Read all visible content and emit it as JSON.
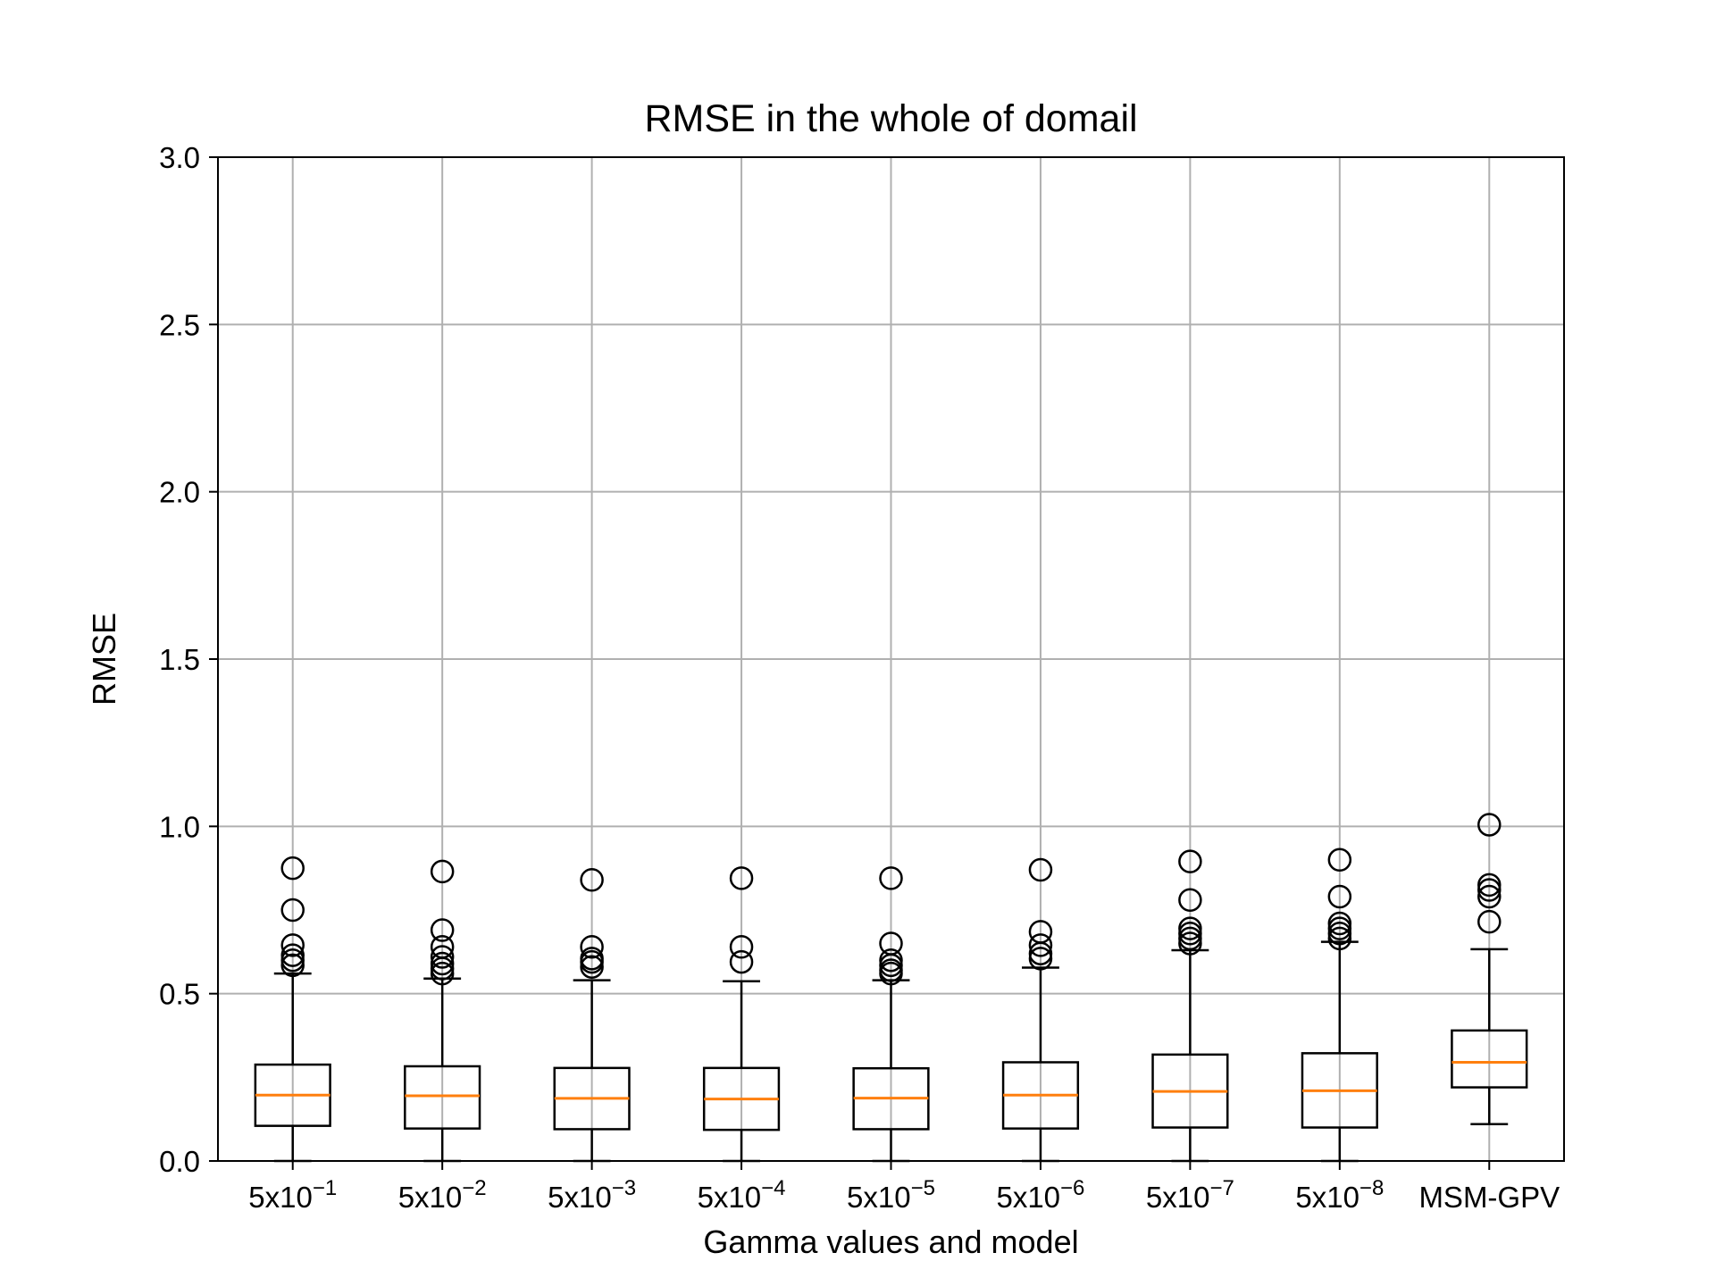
{
  "chart_data": {
    "type": "box",
    "title": "RMSE in the whole of domail",
    "xlabel": "Gamma values and model",
    "ylabel": "RMSE",
    "ylim": [
      0,
      3.0
    ],
    "yticks": [
      "0.0",
      "0.5",
      "1.0",
      "1.5",
      "2.0",
      "2.5",
      "3.0"
    ],
    "ytick_values": [
      0,
      0.5,
      1.0,
      1.5,
      2.0,
      2.5,
      3.0
    ],
    "grid": true,
    "colors": {
      "box": "#000000",
      "median": "#ff7f0e",
      "grid": "#b0b0b0"
    },
    "categories": [
      {
        "base": "5x10",
        "exp": "−1"
      },
      {
        "base": "5x10",
        "exp": "−2"
      },
      {
        "base": "5x10",
        "exp": "−3"
      },
      {
        "base": "5x10",
        "exp": "−4"
      },
      {
        "base": "5x10",
        "exp": "−5"
      },
      {
        "base": "5x10",
        "exp": "−6"
      },
      {
        "base": "5x10",
        "exp": "−7"
      },
      {
        "base": "5x10",
        "exp": "−8"
      },
      {
        "base": "MSM-GPV",
        "exp": ""
      }
    ],
    "boxes": [
      {
        "whislo": 0.0,
        "q1": 0.105,
        "median": 0.197,
        "q3": 0.288,
        "whishi": 0.56,
        "fliers": [
          0.585,
          0.6,
          0.615,
          0.645,
          0.75,
          0.875
        ]
      },
      {
        "whislo": 0.0,
        "q1": 0.097,
        "median": 0.195,
        "q3": 0.283,
        "whishi": 0.545,
        "fliers": [
          0.56,
          0.575,
          0.59,
          0.61,
          0.64,
          0.69,
          0.865
        ]
      },
      {
        "whislo": 0.0,
        "q1": 0.095,
        "median": 0.187,
        "q3": 0.278,
        "whishi": 0.54,
        "fliers": [
          0.58,
          0.595,
          0.605,
          0.64,
          0.84
        ]
      },
      {
        "whislo": 0.0,
        "q1": 0.093,
        "median": 0.185,
        "q3": 0.278,
        "whishi": 0.537,
        "fliers": [
          0.595,
          0.64,
          0.845
        ]
      },
      {
        "whislo": 0.0,
        "q1": 0.095,
        "median": 0.188,
        "q3": 0.277,
        "whishi": 0.54,
        "fliers": [
          0.56,
          0.57,
          0.585,
          0.6,
          0.65,
          0.845
        ]
      },
      {
        "whislo": 0.0,
        "q1": 0.097,
        "median": 0.197,
        "q3": 0.295,
        "whishi": 0.578,
        "fliers": [
          0.605,
          0.62,
          0.645,
          0.685,
          0.87
        ]
      },
      {
        "whislo": 0.0,
        "q1": 0.1,
        "median": 0.208,
        "q3": 0.318,
        "whishi": 0.63,
        "fliers": [
          0.65,
          0.665,
          0.68,
          0.695,
          0.78,
          0.895
        ]
      },
      {
        "whislo": 0.0,
        "q1": 0.1,
        "median": 0.21,
        "q3": 0.322,
        "whishi": 0.655,
        "fliers": [
          0.665,
          0.68,
          0.695,
          0.71,
          0.79,
          0.9
        ]
      },
      {
        "whislo": 0.11,
        "q1": 0.22,
        "median": 0.295,
        "q3": 0.39,
        "whishi": 0.633,
        "fliers": [
          0.715,
          0.79,
          0.81,
          0.825,
          1.005
        ]
      }
    ]
  }
}
